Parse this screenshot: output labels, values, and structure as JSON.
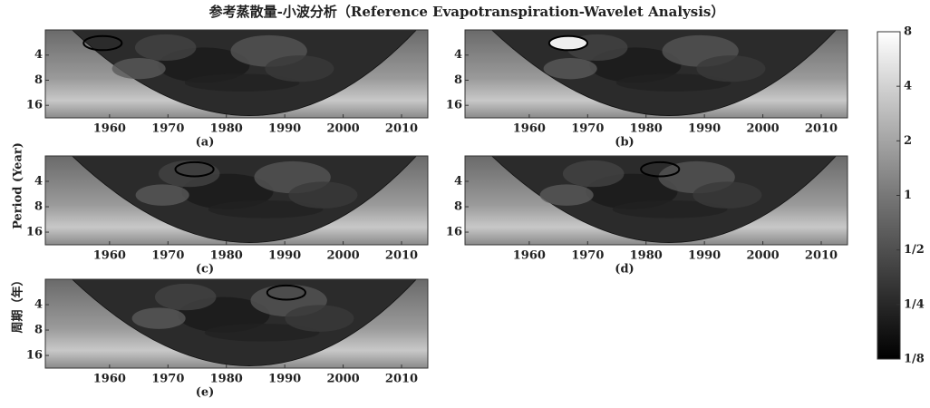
{
  "title": "参考蒸散量-小波分析（Reference Evapotranspiration-Wavelet Analysis）",
  "ylabel": "Period (Year)",
  "ylabel_cn": "周期（年）",
  "colorbar": {
    "type": "colorbar",
    "log": true,
    "ylim": [
      0.125,
      8
    ],
    "yticks": [
      8,
      4,
      2,
      1,
      {
        "value": 0.5,
        "label": "1/2"
      },
      {
        "value": 0.25,
        "label": "1/4"
      },
      {
        "value": 0.125,
        "label": "1/8"
      }
    ]
  },
  "chart_data": [
    {
      "type": "heatmap",
      "label": "(a)",
      "xlim": [
        1949,
        2014.5
      ],
      "xticks": [
        1960,
        1970,
        1980,
        1990,
        2000,
        2010
      ],
      "ylim": [
        2,
        22.6
      ],
      "yticks": [
        4,
        8,
        16
      ],
      "log_y": true
    },
    {
      "type": "heatmap",
      "label": "(b)",
      "xlim": [
        1949,
        2014.5
      ],
      "xticks": [
        1960,
        1970,
        1980,
        1990,
        2000,
        2010
      ],
      "ylim": [
        2,
        22.6
      ],
      "yticks": [
        4,
        8,
        16
      ],
      "log_y": true
    },
    {
      "type": "heatmap",
      "label": "(c)",
      "xlim": [
        1949,
        2014.5
      ],
      "xticks": [
        1960,
        1970,
        1980,
        1990,
        2000,
        2010
      ],
      "ylim": [
        2,
        22.6
      ],
      "yticks": [
        4,
        8,
        16
      ],
      "log_y": true
    },
    {
      "type": "heatmap",
      "label": "(d)",
      "xlim": [
        1949,
        2014.5
      ],
      "xticks": [
        1960,
        1970,
        1980,
        1990,
        2000,
        2010
      ],
      "ylim": [
        2,
        22.6
      ],
      "yticks": [
        4,
        8,
        16
      ],
      "log_y": true
    },
    {
      "type": "heatmap",
      "label": "(e)",
      "xlim": [
        1949,
        2014.5
      ],
      "xticks": [
        1960,
        1970,
        1980,
        1990,
        2000,
        2010
      ],
      "ylim": [
        2,
        22.6
      ],
      "yticks": [
        4,
        8,
        16
      ],
      "log_y": true
    }
  ]
}
